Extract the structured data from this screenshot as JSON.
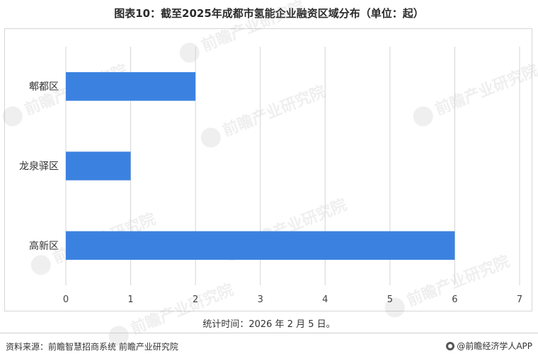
{
  "header": {
    "title": "图表10：截至2025年成都市氢能企业融资区域分布（单位：起）"
  },
  "chart_data": {
    "type": "bar",
    "orientation": "horizontal",
    "categories": [
      "郫都区",
      "龙泉驿区",
      "高新区"
    ],
    "values": [
      2,
      1,
      6
    ],
    "xlim": [
      0,
      7
    ],
    "xticks": [
      "0",
      "1",
      "2",
      "3",
      "4",
      "5",
      "6",
      "7"
    ],
    "grid": true,
    "bar_color": "#3b82e0"
  },
  "notes": {
    "stat_time": "统计时间：2026 年 2 月 5 日。"
  },
  "footer": {
    "source": "资料来源：前瞻智慧招商系统  前瞻产业研究院",
    "brand": "@前瞻经济学人APP"
  },
  "watermark": {
    "text": "前瞻产业研究院",
    "icon": "qianzhan-logo-icon"
  }
}
